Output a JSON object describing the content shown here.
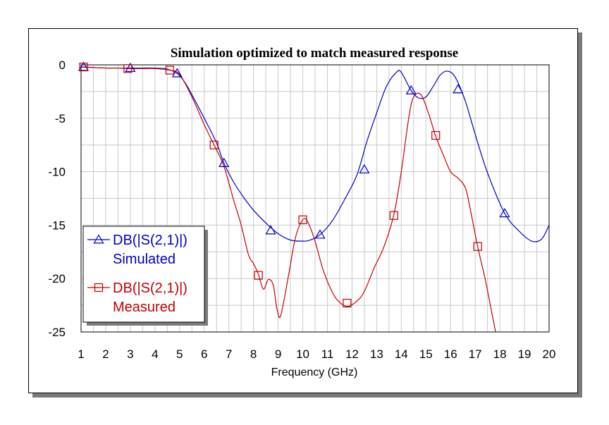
{
  "chart_data": {
    "type": "line",
    "title": "Simulation optimized to match measured response",
    "xlabel": "Frequency (GHz)",
    "ylabel": "",
    "xlim": [
      1,
      20
    ],
    "ylim": [
      -25,
      0
    ],
    "x_ticks": [
      1,
      2,
      3,
      4,
      5,
      6,
      7,
      8,
      9,
      10,
      11,
      12,
      13,
      14,
      15,
      16,
      17,
      18,
      19,
      20
    ],
    "y_ticks": [
      0,
      -5,
      -10,
      -15,
      -20,
      -25
    ],
    "grid": true,
    "legend_position": "bottom-left",
    "series": [
      {
        "name": "DB(|S(2,1)|)",
        "name_line2": "Simulated",
        "color": "#0000c0",
        "marker": "triangle",
        "x": [
          1,
          1.5,
          2,
          2.5,
          3,
          3.5,
          4,
          4.5,
          4.9,
          5.2,
          5.5,
          6.0,
          6.5,
          6.8,
          7.2,
          7.6,
          8.0,
          8.5,
          9.0,
          9.5,
          10.0,
          10.3,
          10.7,
          11.2,
          11.7,
          12.2,
          12.6,
          13.0,
          13.4,
          13.8,
          14.0,
          14.4,
          14.7,
          15.0,
          15.3,
          15.6,
          15.9,
          16.2,
          16.6,
          17.0,
          17.5,
          18.2,
          18.8,
          19.3,
          19.7,
          20.0
        ],
        "y": [
          -0.2,
          -0.25,
          -0.3,
          -0.3,
          -0.3,
          -0.3,
          -0.3,
          -0.4,
          -0.8,
          -1.6,
          -2.8,
          -5.0,
          -7.3,
          -9.2,
          -11.0,
          -12.4,
          -13.6,
          -14.8,
          -15.8,
          -16.4,
          -16.5,
          -16.4,
          -15.9,
          -14.6,
          -12.6,
          -10.3,
          -7.2,
          -4.5,
          -2.0,
          -0.7,
          -0.7,
          -2.4,
          -3.1,
          -3.0,
          -2.0,
          -0.9,
          -0.6,
          -1.2,
          -3.4,
          -6.5,
          -10.1,
          -13.9,
          -15.6,
          -16.5,
          -16.3,
          -15.0
        ],
        "marker_points": [
          [
            1.1,
            -0.2
          ],
          [
            3.0,
            -0.3
          ],
          [
            4.9,
            -0.8
          ],
          [
            6.8,
            -9.2
          ],
          [
            8.7,
            -15.5
          ],
          [
            10.7,
            -15.9
          ],
          [
            12.5,
            -9.8
          ],
          [
            14.4,
            -2.4
          ],
          [
            16.3,
            -2.3
          ],
          [
            18.2,
            -13.9
          ]
        ]
      },
      {
        "name": "DB(|S(2,1)|)",
        "name_line2": "Measured",
        "color": "#c00000",
        "marker": "square",
        "x": [
          1,
          1.5,
          2,
          2.5,
          3,
          3.5,
          4,
          4.6,
          5.0,
          5.5,
          6.0,
          6.4,
          6.8,
          7.2,
          7.5,
          7.8,
          8.0,
          8.2,
          8.4,
          8.6,
          8.8,
          8.95,
          9.1,
          9.4,
          9.7,
          10.0,
          10.2,
          10.5,
          10.8,
          11.1,
          11.4,
          11.8,
          12.2,
          12.5,
          12.9,
          13.3,
          13.7,
          14.0,
          14.3,
          14.5,
          14.8,
          15.1,
          15.4,
          15.7,
          16.0,
          16.3,
          16.6,
          16.8,
          17.1,
          17.4,
          17.7,
          18.0
        ],
        "y": [
          -0.2,
          -0.25,
          -0.3,
          -0.3,
          -0.35,
          -0.35,
          -0.35,
          -0.5,
          -0.9,
          -3.0,
          -5.6,
          -7.5,
          -9.5,
          -12.7,
          -15.0,
          -17.8,
          -18.6,
          -19.6,
          -21.0,
          -20.1,
          -20.6,
          -22.8,
          -23.5,
          -20.0,
          -16.2,
          -14.5,
          -14.7,
          -16.5,
          -19.0,
          -20.8,
          -22.0,
          -22.6,
          -22.1,
          -21.2,
          -19.0,
          -17.0,
          -14.0,
          -10.0,
          -5.0,
          -3.0,
          -2.8,
          -4.5,
          -6.7,
          -8.4,
          -10.0,
          -10.6,
          -11.5,
          -13.5,
          -17.0,
          -20.0,
          -23.5,
          -27.0
        ],
        "marker_points": [
          [
            1.1,
            -0.2
          ],
          [
            2.9,
            -0.35
          ],
          [
            4.6,
            -0.5
          ],
          [
            6.4,
            -7.5
          ],
          [
            8.2,
            -19.7
          ],
          [
            10.0,
            -14.5
          ],
          [
            11.8,
            -22.3
          ],
          [
            13.7,
            -14.1
          ],
          [
            15.4,
            -6.6
          ],
          [
            17.1,
            -17.0
          ]
        ]
      }
    ]
  }
}
